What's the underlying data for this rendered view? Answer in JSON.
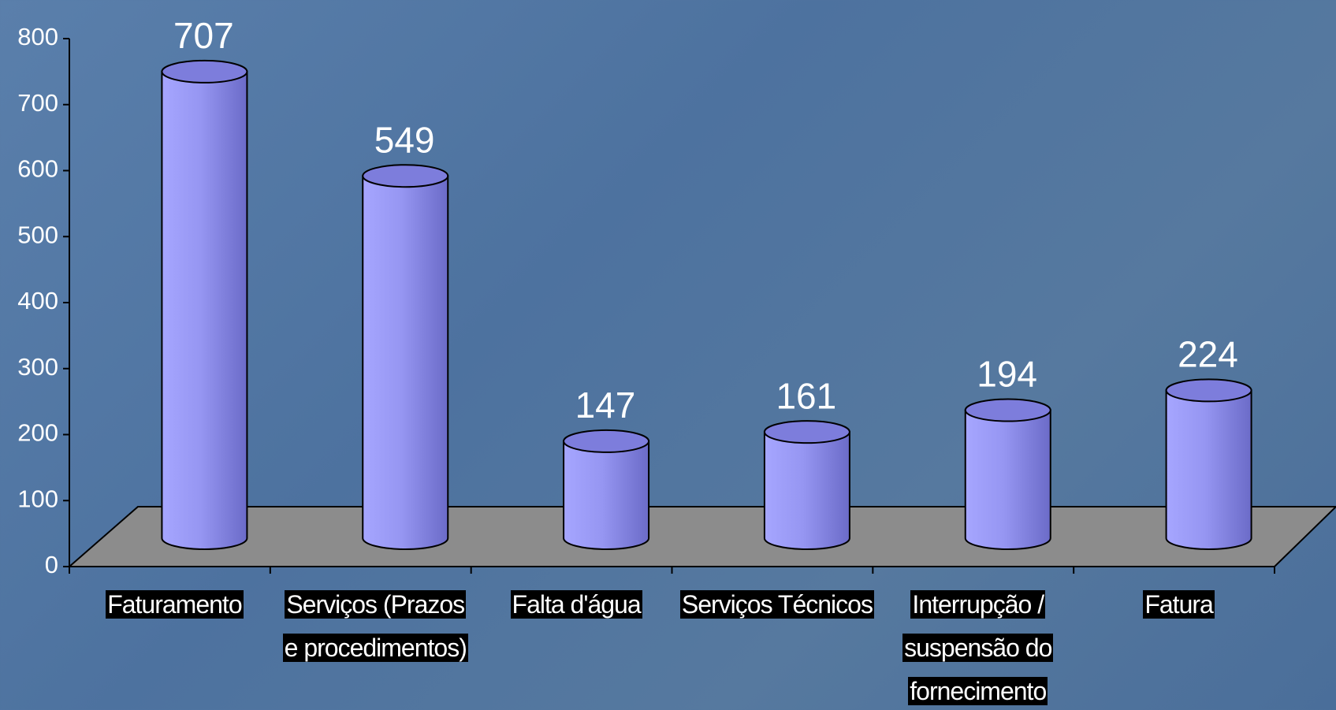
{
  "chart_data": {
    "type": "bar",
    "categories": [
      "Faturamento",
      "Serviços (Prazos e procedimentos)",
      "Falta d'água",
      "Serviços Técnicos",
      "Interrupção / suspensão do fornecimento",
      "Fatura"
    ],
    "values": [
      707,
      549,
      147,
      161,
      194,
      224
    ],
    "color": "#9494f4",
    "ylim": [
      0,
      800
    ],
    "yticks": [
      0,
      100,
      200,
      300,
      400,
      500,
      600,
      700,
      800
    ]
  }
}
